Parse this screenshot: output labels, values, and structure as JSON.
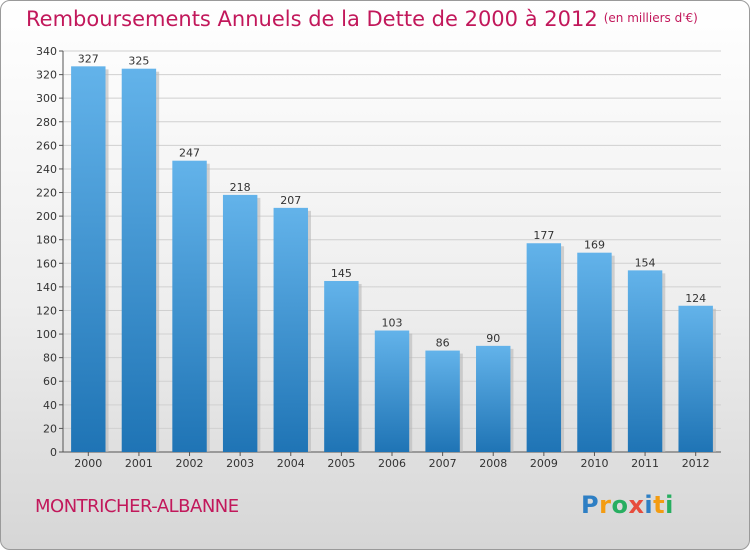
{
  "title": "Remboursements Annuels de la Dette de 2000 à 2012",
  "unit_note": "(en milliers d'€)",
  "location": "MONTRICHER-ALBANNE",
  "logo": {
    "letters": [
      "P",
      "r",
      "o",
      "x",
      "i",
      "t",
      "i"
    ],
    "colors": [
      "#2e7fc4",
      "#f39c12",
      "#27ae60",
      "#e74c3c",
      "#2e7fc4",
      "#f39c12",
      "#27ae60"
    ]
  },
  "colors": {
    "bar_top": "#63b3ea",
    "bar_bottom": "#1f74b5",
    "title": "#c2185b"
  },
  "chart_data": {
    "type": "bar",
    "title": "Remboursements Annuels de la Dette de 2000 à 2012",
    "xlabel": "",
    "ylabel": "",
    "categories": [
      "2000",
      "2001",
      "2002",
      "2003",
      "2004",
      "2005",
      "2006",
      "2007",
      "2008",
      "2009",
      "2010",
      "2011",
      "2012"
    ],
    "values": [
      327,
      325,
      247,
      218,
      207,
      145,
      103,
      86,
      90,
      177,
      169,
      154,
      124
    ],
    "ylim": [
      0,
      340
    ],
    "yticks": [
      0,
      20,
      40,
      60,
      80,
      100,
      120,
      140,
      160,
      180,
      200,
      220,
      240,
      260,
      280,
      300,
      320,
      340
    ],
    "grid": true,
    "legend": "none"
  }
}
